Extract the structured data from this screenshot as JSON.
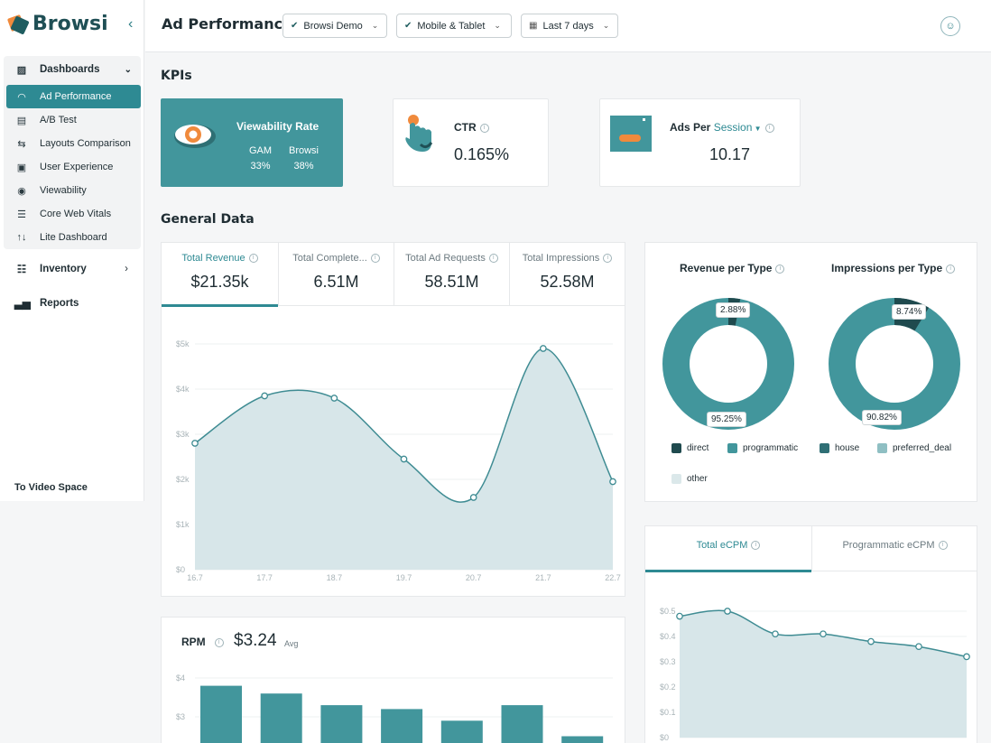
{
  "app": {
    "name": "Browsi"
  },
  "sidebar": {
    "collapse_icon": "chevron-left-icon",
    "dashboards_label": "Dashboards",
    "items": [
      {
        "label": "Ad Performance",
        "icon": "gauge-icon"
      },
      {
        "label": "A/B Test",
        "icon": "ab-icon"
      },
      {
        "label": "Layouts Comparison",
        "icon": "compare-icon"
      },
      {
        "label": "User Experience",
        "icon": "user-icon"
      },
      {
        "label": "Viewability",
        "icon": "eye-icon"
      },
      {
        "label": "Core Web Vitals",
        "icon": "server-icon"
      },
      {
        "label": "Lite Dashboard",
        "icon": "arrows-icon"
      }
    ],
    "inventory_label": "Inventory",
    "reports_label": "Reports",
    "to_video_label": "To Video Space"
  },
  "header": {
    "title": "Ad Performance",
    "filters": [
      "Browsi Demo",
      "Mobile & Tablet",
      "Last 7 days"
    ]
  },
  "kpis": {
    "section_title": "KPIs",
    "viewability": {
      "title": "Viewability Rate",
      "gam_label": "GAM",
      "gam_value": "33%",
      "browsi_label": "Browsi",
      "browsi_value": "38%"
    },
    "ctr": {
      "label": "CTR",
      "value": "0.165%"
    },
    "ads": {
      "label": "Ads Per",
      "selector": "Session",
      "value": "10.17"
    }
  },
  "general": {
    "section_title": "General Data",
    "tabs": [
      {
        "label": "Total Revenue",
        "value": "$21.35k"
      },
      {
        "label": "Total Complete...",
        "value": "6.51M"
      },
      {
        "label": "Total Ad Requests",
        "value": "58.51M"
      },
      {
        "label": "Total Impressions",
        "value": "52.58M"
      }
    ]
  },
  "donuts": {
    "revenue_title": "Revenue per Type",
    "impressions_title": "Impressions per Type",
    "revenue_small_pct": "2.88%",
    "revenue_big_pct": "95.25%",
    "impressions_small_pct": "8.74%",
    "impressions_big_pct": "90.82%",
    "legend": [
      {
        "label": "direct",
        "color": "#1f4a4e"
      },
      {
        "label": "programmatic",
        "color": "#42969c"
      },
      {
        "label": "house",
        "color": "#2f6f75"
      },
      {
        "label": "preferred_deal",
        "color": "#8fbfc3"
      },
      {
        "label": "other",
        "color": "#dbe8ea"
      }
    ]
  },
  "ecpm": {
    "tabs": [
      "Total eCPM",
      "Programmatic eCPM"
    ]
  },
  "rpm": {
    "label": "RPM",
    "value": "$3.24",
    "suffix": "Avg"
  },
  "chart_data": [
    {
      "type": "area",
      "title": "Total Revenue",
      "x": [
        "16.7",
        "17.7",
        "18.7",
        "19.7",
        "20.7",
        "21.7",
        "22.7"
      ],
      "values": [
        2800,
        3850,
        3800,
        2450,
        1600,
        4900,
        1950
      ],
      "yticks": [
        "$0",
        "$1k",
        "$2k",
        "$3k",
        "$4k",
        "$5k"
      ],
      "ylim": [
        0,
        5000
      ],
      "color": "#3f8c93"
    },
    {
      "type": "area",
      "title": "Total eCPM",
      "values": [
        0.48,
        0.5,
        0.41,
        0.41,
        0.38,
        0.36,
        0.32
      ],
      "yticks": [
        "$0",
        "$0.1",
        "$0.2",
        "$0.3",
        "$0.4",
        "$0.5"
      ],
      "ylim": [
        0,
        0.5
      ],
      "color": "#3f8c93"
    },
    {
      "type": "bar",
      "title": "RPM",
      "values": [
        3.8,
        3.6,
        3.3,
        3.2,
        2.9,
        3.3,
        2.5
      ],
      "yticks": [
        "$3",
        "$4"
      ],
      "color": "#42969c"
    },
    {
      "type": "pie",
      "title": "Revenue per Type",
      "categories": [
        "direct",
        "programmatic"
      ],
      "values": [
        2.88,
        95.25
      ]
    },
    {
      "type": "pie",
      "title": "Impressions per Type",
      "categories": [
        "direct",
        "programmatic"
      ],
      "values": [
        8.74,
        90.82
      ]
    }
  ]
}
